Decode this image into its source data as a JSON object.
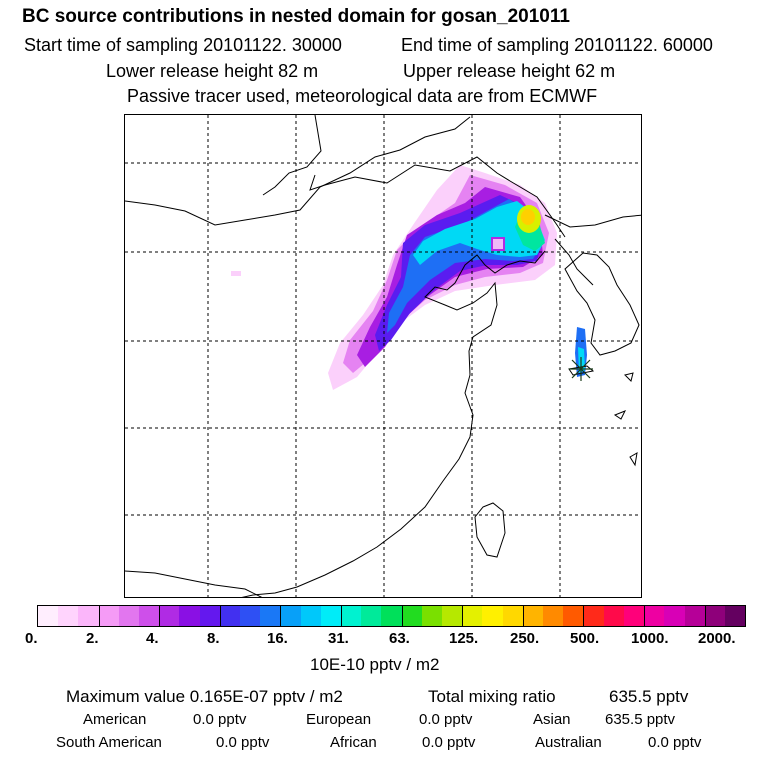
{
  "header": {
    "title": "BC  source contributions in nested domain for gosan_201011",
    "start_label": "Start time of sampling 20101122. 30000",
    "end_label": "End time of sampling 20101122. 60000",
    "lower_label": "Lower release height   82 m",
    "upper_label": "Upper release height   62 m",
    "tracer_note": "Passive tracer used, meteorological data are from ECMWF"
  },
  "colorbar": {
    "colors": [
      "#ffeefe",
      "#ffd4fd",
      "#fbb6fa",
      "#f59bf6",
      "#e276ef",
      "#ce4fea",
      "#b02be4",
      "#8a10e4",
      "#6418ee",
      "#4230f0",
      "#2e50f4",
      "#1a78f6",
      "#08a0f8",
      "#00c8fa",
      "#00ecf8",
      "#00f2d0",
      "#00ea9a",
      "#00e05a",
      "#22dc20",
      "#7ae000",
      "#b6e800",
      "#e4f000",
      "#fff000",
      "#ffd800",
      "#ffb400",
      "#ff8a00",
      "#ff5a00",
      "#ff2a1a",
      "#ff0a4a",
      "#ff007a",
      "#ee00a2",
      "#d800b6",
      "#b60098",
      "#8e007a",
      "#640060"
    ],
    "tick_labels": [
      "0.",
      "2.",
      "4.",
      "8.",
      "16.",
      "31.",
      "63.",
      "125.",
      "250.",
      "500.",
      "1000.",
      "2000."
    ],
    "units": "10E-10 pptv / m2"
  },
  "stats": {
    "max_label": "Maximum value  0.165E-07 pptv / m2",
    "total_label": "Total mixing ratio",
    "total_value": "635.5 pptv",
    "regions": [
      {
        "name": "American",
        "value": "0.0 pptv"
      },
      {
        "name": "European",
        "value": "0.0 pptv"
      },
      {
        "name": "Asian",
        "value": "635.5 pptv"
      },
      {
        "name": "South American",
        "value": "0.0 pptv"
      },
      {
        "name": "African",
        "value": "0.0 pptv"
      },
      {
        "name": "Australian",
        "value": "0.0 pptv"
      }
    ]
  }
}
